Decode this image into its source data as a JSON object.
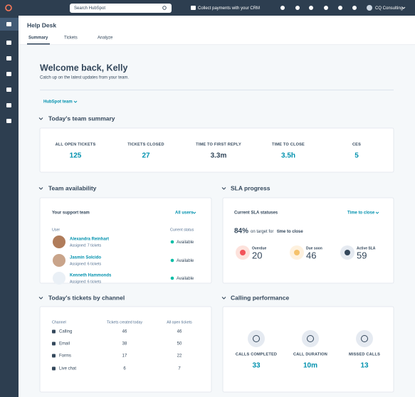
{
  "topbar": {
    "search_placeholder": "Search HubSpot",
    "promo": "Collect payments with your CRM",
    "account": "CQ Consulting"
  },
  "header": {
    "title": "Help Desk",
    "tabs": [
      "Summary",
      "Tickets",
      "Analyze"
    ]
  },
  "welcome": {
    "title": "Welcome back, Kelly",
    "subtitle": "Catch up on the latest updates from your team."
  },
  "team_filter": "HubSpot team",
  "team_summary": {
    "heading": "Today's team summary",
    "metrics": [
      {
        "label": "ALL OPEN TICKETS",
        "value": 125
      },
      {
        "label": "TICKETS CLOSED",
        "value": 27
      },
      {
        "label": "TIME TO FIRST REPLY",
        "value": "3.3m"
      },
      {
        "label": "TIME TO CLOSE",
        "value": "3.5h"
      },
      {
        "label": "CES",
        "value": 5
      }
    ]
  },
  "team_availability": {
    "heading": "Team availability",
    "card_title": "Your support team",
    "filter": "All users",
    "columns": [
      "User",
      "Current status"
    ],
    "users": [
      {
        "name": "Alexandra Reinhart",
        "assigned": "Assigned: 7 tickets",
        "status": "Available"
      },
      {
        "name": "Jasmin Solcido",
        "assigned": "Assigned: 6 tickets",
        "status": "Available"
      },
      {
        "name": "Kenneth Hammonds",
        "assigned": "Assigned: 6 tickets",
        "status": "Available"
      }
    ]
  },
  "sla_progress": {
    "heading": "SLA progress",
    "card_title": "Current SLA statuses",
    "filter": "Time to close",
    "on_target_percent": "84%",
    "on_target_text": "on target for",
    "on_target_metric": "time to close",
    "statuses": [
      {
        "label": "Overdue",
        "value": 20
      },
      {
        "label": "Due soon",
        "value": 46
      },
      {
        "label": "Active SLA",
        "value": 59
      }
    ]
  },
  "tickets_by_channel": {
    "heading": "Today's tickets by channel",
    "columns": [
      "Channel",
      "Tickets created today",
      "All open tickets"
    ],
    "rows": [
      {
        "channel": "Calling",
        "created_today": 46,
        "open": 46
      },
      {
        "channel": "Email",
        "created_today": 38,
        "open": 50
      },
      {
        "channel": "Forms",
        "created_today": 17,
        "open": 22
      },
      {
        "channel": "Live chat",
        "created_today": 6,
        "open": 7
      }
    ]
  },
  "calling_performance": {
    "heading": "Calling performance",
    "metrics": [
      {
        "label": "CALLS COMPLETED",
        "value": 33
      },
      {
        "label": "CALL DURATION",
        "value": "10m"
      },
      {
        "label": "MISSED CALLS",
        "value": 13
      }
    ]
  }
}
